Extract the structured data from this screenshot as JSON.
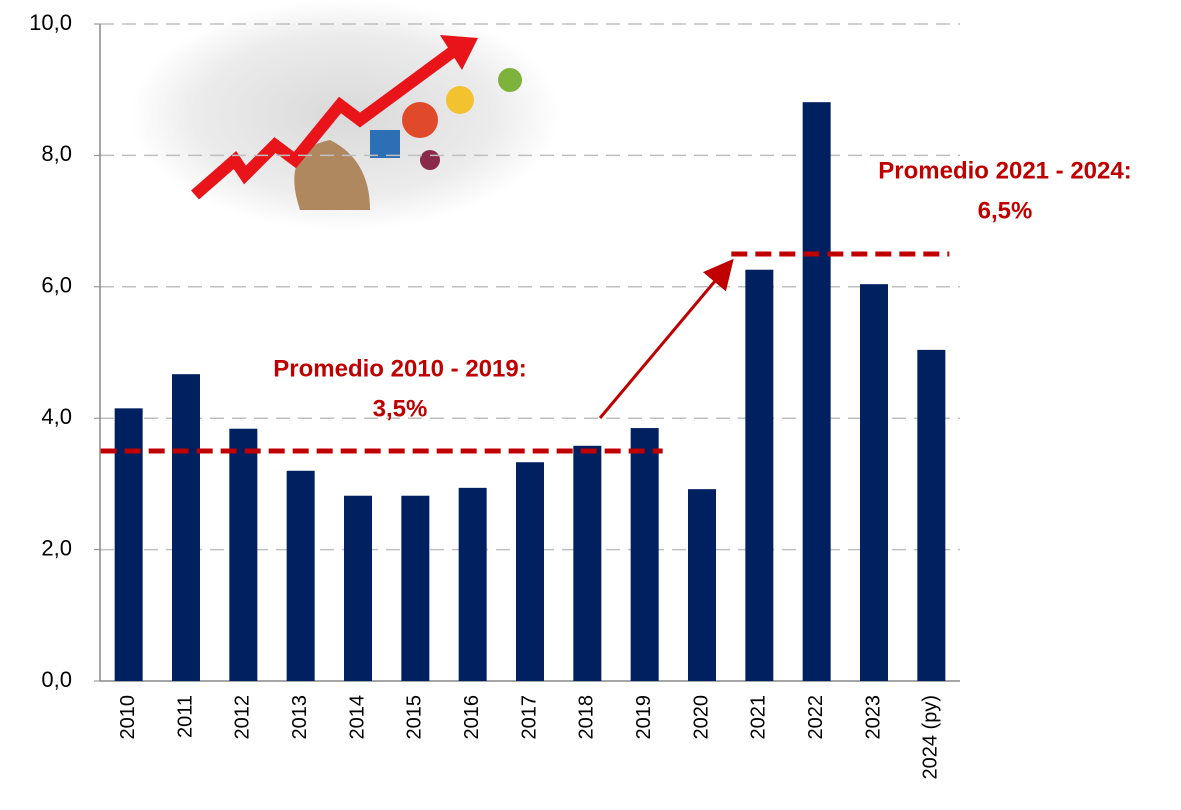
{
  "chart_data": {
    "type": "bar",
    "categories": [
      "2010",
      "2011",
      "2012",
      "2013",
      "2014",
      "2015",
      "2016",
      "2017",
      "2018",
      "2019",
      "2020",
      "2021",
      "2022",
      "2023",
      "2024 (py)"
    ],
    "values": [
      4.15,
      4.67,
      3.84,
      3.2,
      2.82,
      2.82,
      2.94,
      3.33,
      3.58,
      3.85,
      2.92,
      6.26,
      8.81,
      6.04,
      5.04
    ],
    "color": "#002060",
    "ylim": [
      0,
      10
    ],
    "yticks": [
      {
        "value": 0,
        "label": "0,0"
      },
      {
        "value": 2,
        "label": "2,0"
      },
      {
        "value": 4,
        "label": "4,0"
      },
      {
        "value": 6,
        "label": "6,0"
      },
      {
        "value": 8,
        "label": "8,0"
      },
      {
        "value": 10,
        "label": "10,0"
      }
    ],
    "grid": true,
    "annotations": [
      {
        "label": "Promedio 2010 - 2019:",
        "value": 3.5,
        "value_label": "3,5%"
      },
      {
        "label": "Promedio 2021 - 2024:",
        "value": 6.5,
        "value_label": "6,5%"
      }
    ]
  }
}
